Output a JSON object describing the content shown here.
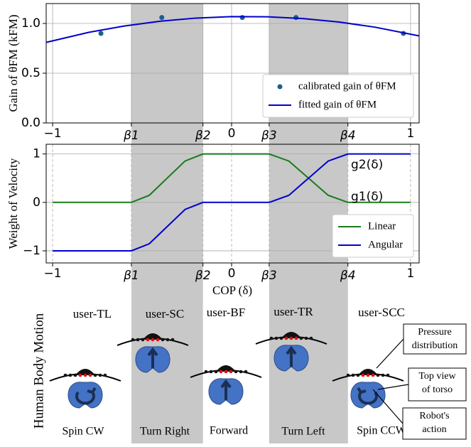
{
  "chart_data": [
    {
      "type": "scatter",
      "ylabel": "Gain of θFM (kFM)",
      "xlim": [
        -1.036,
        1.048
      ],
      "ylim": [
        0,
        1.2
      ],
      "xticks": [
        {
          "value": -1,
          "label": "−1"
        },
        {
          "value": -0.56,
          "label": "β1"
        },
        {
          "value": -0.16,
          "label": "β2"
        },
        0,
        {
          "value": 0.21,
          "label": "β3"
        },
        {
          "value": 0.65,
          "label": "β4"
        },
        1
      ],
      "yticks": [
        {
          "value": 0,
          "label": "0.0"
        },
        {
          "value": 0.5,
          "label": "0.5"
        },
        {
          "value": 1,
          "label": "1.0"
        }
      ],
      "grid": true,
      "legend": "lower right",
      "bands": [
        [
          -0.56,
          -0.16
        ],
        [
          0.21,
          0.65
        ]
      ],
      "series": [
        {
          "name": "calibrated gain of θFM",
          "type": "scatter",
          "color": "#1f5f8b",
          "x": [
            -0.73,
            -0.39,
            0.06,
            0.36,
            0.96
          ],
          "values": [
            0.9,
            1.06,
            1.06,
            1.06,
            0.9
          ]
        },
        {
          "name": "fitted gain of θFM",
          "type": "line",
          "color": "#0000cc",
          "x": [
            -1.036,
            -0.8,
            -0.6,
            -0.4,
            -0.2,
            0,
            0.2,
            0.4,
            0.6,
            0.8,
            1.048
          ],
          "values": [
            0.81,
            0.91,
            0.974,
            1.022,
            1.054,
            1.069,
            1.067,
            1.049,
            1.014,
            0.963,
            0.875
          ]
        }
      ]
    },
    {
      "type": "line",
      "xlabel": "COP (δ)",
      "ylabel": "Weight of Velocity",
      "xlim": [
        -1.036,
        1.048
      ],
      "ylim": [
        -1.25,
        1.2
      ],
      "xticks": [
        {
          "value": -1,
          "label": "−1"
        },
        {
          "value": -0.56,
          "label": "β1"
        },
        {
          "value": -0.16,
          "label": "β2"
        },
        0,
        {
          "value": 0.21,
          "label": "β3"
        },
        {
          "value": 0.65,
          "label": "β4"
        },
        1
      ],
      "yticks": [
        {
          "value": -1,
          "label": "−1"
        },
        0,
        1
      ],
      "grid": true,
      "legend": "lower right",
      "bands": [
        [
          -0.56,
          -0.16
        ],
        [
          0.21,
          0.65
        ]
      ],
      "annotations": [
        "g2(δ)",
        "g1(δ)"
      ],
      "series": [
        {
          "name": "Linear",
          "color": "#1a7a1a",
          "x": [
            -1,
            -0.56,
            -0.46,
            -0.36,
            -0.26,
            -0.16,
            0.21,
            0.32,
            0.43,
            0.54,
            0.65,
            1
          ],
          "values": [
            0,
            0,
            0.146,
            0.5,
            0.854,
            1,
            1,
            0.854,
            0.5,
            0.146,
            0,
            0
          ]
        },
        {
          "name": "Angular",
          "color": "#0000cc",
          "x": [
            -1,
            -0.56,
            -0.46,
            -0.36,
            -0.26,
            -0.16,
            0.21,
            0.32,
            0.43,
            0.54,
            0.65,
            1
          ],
          "values": [
            -1,
            -1,
            -0.854,
            -0.5,
            -0.146,
            0,
            0,
            0.146,
            0.5,
            0.854,
            1,
            1
          ]
        }
      ]
    }
  ],
  "motion": {
    "title": "Human Body Motion",
    "users": [
      "user-TL",
      "user-SC",
      "user-BF",
      "user-TR",
      "user-SCC"
    ],
    "actions": [
      "Spin CW",
      "Turn Right",
      "Forward",
      "Turn Left",
      "Spin CCW"
    ],
    "callouts": [
      [
        "Pressure",
        "distribution"
      ],
      [
        "Top view",
        "of torso"
      ],
      [
        "Robot's",
        "action"
      ]
    ]
  }
}
